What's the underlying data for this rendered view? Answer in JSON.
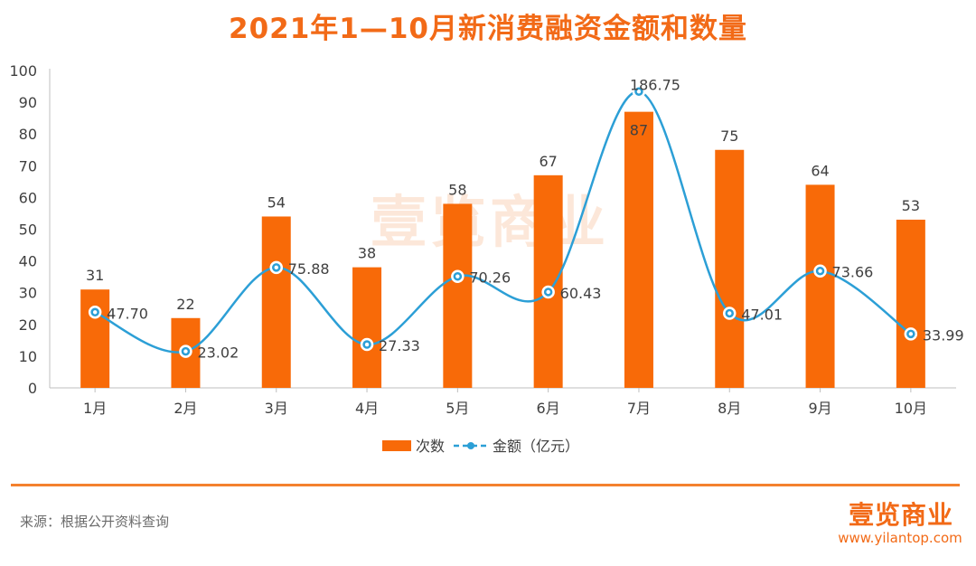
{
  "title": "2021年1—10月新消费融资金额和数量",
  "source": "来源：根据公开资料查询",
  "brand": {
    "logo_text": "壹览商业",
    "url": "www.yilantop.com"
  },
  "colors": {
    "bar": "#f86a08",
    "line": "#2c9fd6",
    "accent": "#f26a17"
  },
  "chart_data": {
    "type": "bar",
    "categories": [
      "1月",
      "2月",
      "3月",
      "4月",
      "5月",
      "6月",
      "7月",
      "8月",
      "9月",
      "10月"
    ],
    "series": [
      {
        "name": "次数",
        "type": "bar",
        "values": [
          31,
          22,
          54,
          38,
          58,
          67,
          87,
          75,
          64,
          53
        ],
        "labels": [
          "31",
          "22",
          "54",
          "38",
          "58",
          "67",
          "87",
          "75",
          "64",
          "53"
        ]
      },
      {
        "name": "金额（亿元）",
        "type": "line",
        "values": [
          47.7,
          23.02,
          75.88,
          27.33,
          70.26,
          60.43,
          186.75,
          47.01,
          73.66,
          33.99
        ],
        "labels": [
          "47.70",
          "23.02",
          "75.88",
          "27.33",
          "70.26",
          "60.43",
          "186.75",
          "47.01",
          "73.66",
          "33.99"
        ]
      }
    ],
    "y_ticks": [
      "0",
      "10",
      "20",
      "30",
      "40",
      "50",
      "60",
      "70",
      "80",
      "90",
      "100"
    ],
    "ylim": [
      0,
      100
    ],
    "line_ylim": [
      0,
      200
    ],
    "legend": [
      "次数",
      "金额（亿元）"
    ],
    "legend_position": "bottom-center"
  }
}
